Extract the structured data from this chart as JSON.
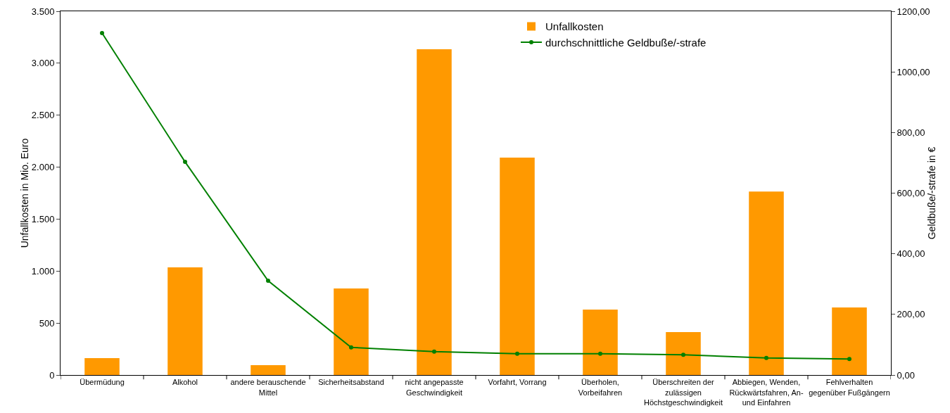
{
  "chart_data": {
    "type": "bar",
    "categories": [
      "Übermüdung",
      "Alkohol",
      "andere berauschende Mittel",
      "Sicherheitsabstand",
      "nicht angepasste Geschwindigkeit",
      "Vorfahrt, Vorrang",
      "Überholen, Vorbeifahren",
      "Überschreiten der zulässigen Höchstgeschwindigkeit",
      "Abbiegen, Wenden, Rückwärtsfahren, An- und Einfahren",
      "Fehlverhalten gegenüber Fußgängern"
    ],
    "series": [
      {
        "name": "Unfallkosten",
        "color": "#ff9900",
        "values": [
          162,
          1036,
          95,
          833,
          3134,
          2092,
          630,
          413,
          1765,
          650
        ]
      },
      {
        "name": "durchschnittliche Geldbuße/-strafe",
        "type": "line",
        "axis": "y2",
        "color": "#008000",
        "marker": "circle",
        "line_style": "solid",
        "values": [
          1128,
          703,
          311,
          91,
          77,
          70,
          70,
          67,
          56,
          53
        ]
      }
    ],
    "ylabel": "Unfallkosten in Mio. Euro",
    "y2label": "Geldbuße/-strafe in €",
    "ylim": [
      0,
      3500
    ],
    "yticks": [
      0,
      {
        "value": 500,
        "label": "500"
      },
      {
        "value": 1000,
        "label": "1.000"
      },
      {
        "value": 1500,
        "label": "1.500"
      },
      {
        "value": 2000,
        "label": "2.000"
      },
      {
        "value": 2500,
        "label": "2.500"
      },
      {
        "value": 3000,
        "label": "3.000"
      },
      {
        "value": 3500,
        "label": "3.500"
      }
    ],
    "y2lim": [
      0,
      1200
    ],
    "y2ticks": [
      {
        "value": 0,
        "label": "0,00"
      },
      {
        "value": 200,
        "label": "200,00"
      },
      {
        "value": 400,
        "label": "400,00"
      },
      {
        "value": 600,
        "label": "600,00"
      },
      {
        "value": 800,
        "label": "800,00"
      },
      {
        "value": 1000,
        "label": "1000,00"
      },
      {
        "value": 1200,
        "label": "1200,00"
      }
    ],
    "grid": false,
    "legend": "top right"
  }
}
